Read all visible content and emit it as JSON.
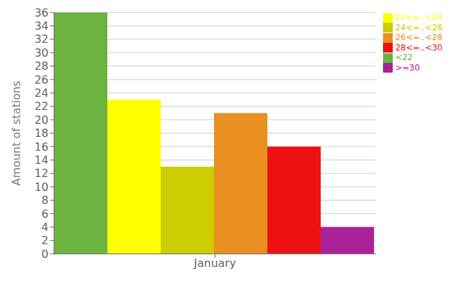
{
  "chart_data": {
    "type": "bar",
    "ylabel": "Amount of stations",
    "categories": [
      "January"
    ],
    "series": [
      {
        "name": "<22",
        "color": "#6db33f",
        "values": [
          36
        ]
      },
      {
        "name": "22<=..<24",
        "color": "#ffff00",
        "values": [
          23
        ]
      },
      {
        "name": "24<=..<26",
        "color": "#cccc00",
        "values": [
          13
        ]
      },
      {
        "name": "26<=..<28",
        "color": "#e89020",
        "values": [
          21
        ]
      },
      {
        "name": "28<=..<30",
        "color": "#ee1111",
        "values": [
          16
        ]
      },
      {
        "name": ">=30",
        "color": "#aa2299",
        "values": [
          4
        ]
      }
    ],
    "ylim": [
      0,
      36
    ],
    "yticks": [
      0,
      2,
      4,
      6,
      8,
      10,
      12,
      14,
      16,
      18,
      20,
      22,
      24,
      26,
      28,
      30,
      32,
      34,
      36
    ],
    "grid": true,
    "legend": "upper right"
  }
}
